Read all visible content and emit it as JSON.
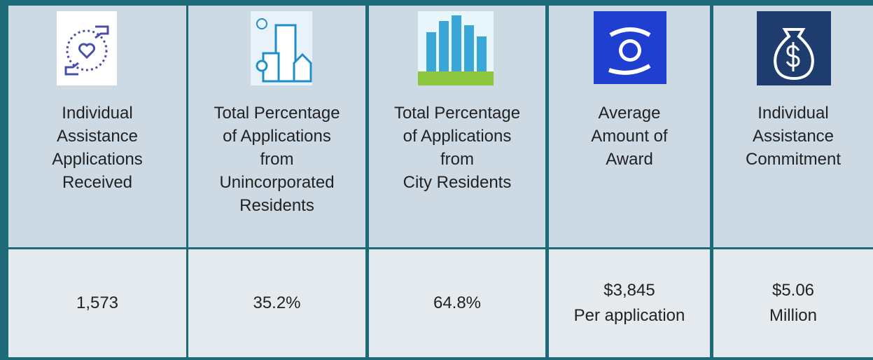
{
  "table": {
    "headers": [
      [
        "Individual",
        "Assistance",
        "Applications",
        "Received"
      ],
      [
        "Total Percentage",
        "of Applications",
        "from",
        "Unincorporated",
        "Residents"
      ],
      [
        "Total Percentage",
        "of Applications",
        "from",
        "City Residents"
      ],
      [
        "Average",
        "Amount of",
        "Award"
      ],
      [
        "Individual",
        "Assistance",
        "Commitment"
      ]
    ],
    "values": [
      [
        "1,573"
      ],
      [
        "35.2%"
      ],
      [
        "64.8%"
      ],
      [
        "$3,845",
        "Per application"
      ],
      [
        "$5.06",
        "Million"
      ]
    ]
  }
}
